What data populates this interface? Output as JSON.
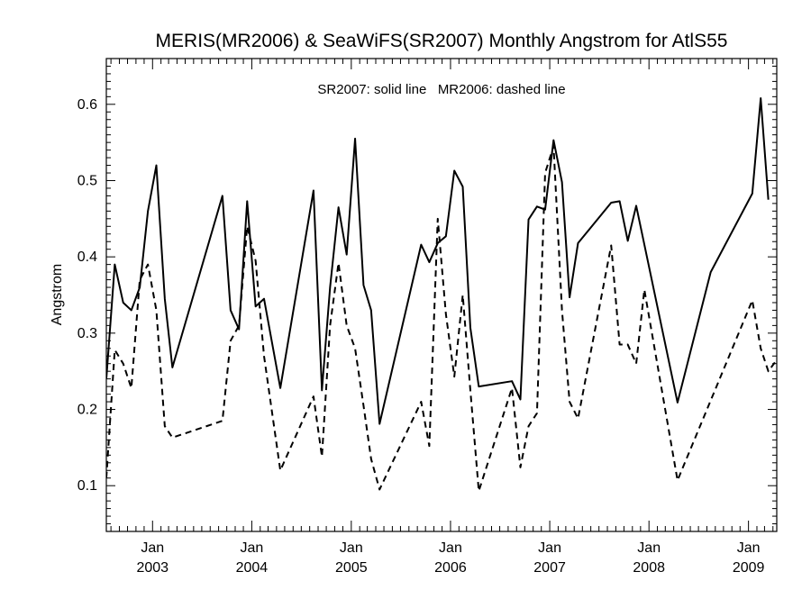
{
  "chart_data": {
    "type": "line",
    "title": "MERIS(MR2006) & SeaWiFS(SR2007) Monthly Angstrom for AtlS55",
    "annotation": "SR2007: solid line   MR2006: dashed line",
    "xlabel": "",
    "ylabel": "Angstrom",
    "xlim": [
      "2002-07-15",
      "2009-04-15"
    ],
    "ylim": [
      0.04,
      0.66
    ],
    "yticks": [
      0.1,
      0.2,
      0.3,
      0.4,
      0.5,
      0.6
    ],
    "ytick_labels": [
      "0.1",
      "0.2",
      "0.3",
      "0.4",
      "0.5",
      "0.6"
    ],
    "xticks": [
      {
        "date": "2003-01-01",
        "month": "Jan",
        "year": "2003"
      },
      {
        "date": "2004-01-01",
        "month": "Jan",
        "year": "2004"
      },
      {
        "date": "2005-01-01",
        "month": "Jan",
        "year": "2005"
      },
      {
        "date": "2006-01-01",
        "month": "Jan",
        "year": "2006"
      },
      {
        "date": "2007-01-01",
        "month": "Jan",
        "year": "2007"
      },
      {
        "date": "2008-01-01",
        "month": "Jan",
        "year": "2008"
      },
      {
        "date": "2009-01-01",
        "month": "Jan",
        "year": "2009"
      }
    ],
    "grid": false,
    "series": [
      {
        "name": "SR2007",
        "style": "solid",
        "color": "#000000",
        "points": [
          [
            "2002-07-15",
            0.24
          ],
          [
            "2002-08-15",
            0.39
          ],
          [
            "2002-09-15",
            0.34
          ],
          [
            "2002-10-15",
            0.33
          ],
          [
            "2002-11-15",
            0.36
          ],
          [
            "2002-12-15",
            0.46
          ],
          [
            "2003-01-15",
            0.52
          ],
          [
            "2003-02-15",
            0.345
          ],
          [
            "2003-03-15",
            0.255
          ],
          [
            "2003-09-15",
            0.48
          ],
          [
            "2003-10-15",
            0.33
          ],
          [
            "2003-11-15",
            0.305
          ],
          [
            "2003-12-15",
            0.473
          ],
          [
            "2004-01-15",
            0.335
          ],
          [
            "2004-02-15",
            0.345
          ],
          [
            "2004-04-15",
            0.228
          ],
          [
            "2004-08-15",
            0.487
          ],
          [
            "2004-09-15",
            0.225
          ],
          [
            "2004-10-15",
            0.36
          ],
          [
            "2004-11-15",
            0.465
          ],
          [
            "2004-12-15",
            0.403
          ],
          [
            "2005-01-15",
            0.555
          ],
          [
            "2005-02-15",
            0.363
          ],
          [
            "2005-03-15",
            0.33
          ],
          [
            "2005-04-15",
            0.181
          ],
          [
            "2005-09-15",
            0.416
          ],
          [
            "2005-10-15",
            0.393
          ],
          [
            "2005-11-15",
            0.418
          ],
          [
            "2005-12-15",
            0.427
          ],
          [
            "2006-01-15",
            0.513
          ],
          [
            "2006-02-15",
            0.492
          ],
          [
            "2006-03-15",
            0.307
          ],
          [
            "2006-04-15",
            0.23
          ],
          [
            "2006-08-15",
            0.237
          ],
          [
            "2006-09-15",
            0.213
          ],
          [
            "2006-10-15",
            0.449
          ],
          [
            "2006-11-15",
            0.466
          ],
          [
            "2006-12-15",
            0.462
          ],
          [
            "2007-01-15",
            0.553
          ],
          [
            "2007-02-15",
            0.498
          ],
          [
            "2007-03-15",
            0.347
          ],
          [
            "2007-04-15",
            0.418
          ],
          [
            "2007-08-15",
            0.471
          ],
          [
            "2007-09-15",
            0.473
          ],
          [
            "2007-10-15",
            0.421
          ],
          [
            "2007-11-15",
            0.467
          ],
          [
            "2008-04-15",
            0.209
          ],
          [
            "2008-08-15",
            0.38
          ],
          [
            "2009-01-15",
            0.483
          ],
          [
            "2009-02-15",
            0.608
          ],
          [
            "2009-03-15",
            0.475
          ]
        ]
      },
      {
        "name": "MR2006",
        "style": "dashed",
        "color": "#000000",
        "points": [
          [
            "2002-07-15",
            0.11
          ],
          [
            "2002-08-15",
            0.278
          ],
          [
            "2002-09-15",
            0.26
          ],
          [
            "2002-10-15",
            0.228
          ],
          [
            "2002-11-15",
            0.37
          ],
          [
            "2002-12-15",
            0.39
          ],
          [
            "2003-01-15",
            0.33
          ],
          [
            "2003-02-15",
            0.178
          ],
          [
            "2003-03-15",
            0.163
          ],
          [
            "2003-09-15",
            0.185
          ],
          [
            "2003-10-15",
            0.29
          ],
          [
            "2003-11-15",
            0.31
          ],
          [
            "2003-12-15",
            0.44
          ],
          [
            "2004-01-15",
            0.395
          ],
          [
            "2004-02-15",
            0.27
          ],
          [
            "2004-04-15",
            0.12
          ],
          [
            "2004-08-15",
            0.217
          ],
          [
            "2004-09-15",
            0.138
          ],
          [
            "2004-10-15",
            0.31
          ],
          [
            "2004-11-15",
            0.392
          ],
          [
            "2004-12-15",
            0.31
          ],
          [
            "2005-01-15",
            0.28
          ],
          [
            "2005-02-15",
            0.205
          ],
          [
            "2005-03-15",
            0.135
          ],
          [
            "2005-04-15",
            0.095
          ],
          [
            "2005-09-15",
            0.21
          ],
          [
            "2005-10-15",
            0.152
          ],
          [
            "2005-11-15",
            0.45
          ],
          [
            "2005-12-15",
            0.325
          ],
          [
            "2006-01-15",
            0.243
          ],
          [
            "2006-02-15",
            0.35
          ],
          [
            "2006-03-15",
            0.225
          ],
          [
            "2006-04-15",
            0.093
          ],
          [
            "2006-08-15",
            0.228
          ],
          [
            "2006-09-15",
            0.124
          ],
          [
            "2006-10-15",
            0.178
          ],
          [
            "2006-11-15",
            0.195
          ],
          [
            "2006-12-15",
            0.51
          ],
          [
            "2007-01-15",
            0.545
          ],
          [
            "2007-02-15",
            0.33
          ],
          [
            "2007-03-15",
            0.21
          ],
          [
            "2007-04-15",
            0.188
          ],
          [
            "2007-08-15",
            0.415
          ],
          [
            "2007-09-15",
            0.285
          ],
          [
            "2007-10-15",
            0.285
          ],
          [
            "2007-11-15",
            0.26
          ],
          [
            "2007-12-15",
            0.357
          ],
          [
            "2008-04-15",
            0.107
          ],
          [
            "2009-01-15",
            0.343
          ],
          [
            "2009-02-15",
            0.28
          ],
          [
            "2009-03-15",
            0.25
          ],
          [
            "2009-04-15",
            0.265
          ]
        ]
      }
    ]
  }
}
